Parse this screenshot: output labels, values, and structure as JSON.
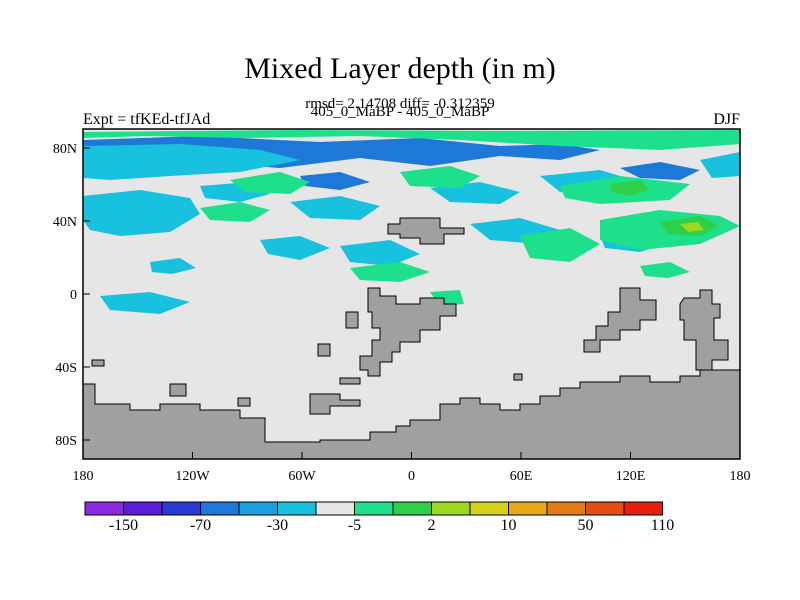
{
  "figure": {
    "title": "Mixed Layer depth (in m)",
    "stats_line": "rmsd= 2.14708 diff= -0.312359",
    "subtitle": "405_0_MaBP - 405_0_MaBP",
    "left_label": "Expt = tfKEd-tfJAd",
    "right_label": "DJF"
  },
  "axes": {
    "x_ticks": [
      "180",
      "120W",
      "60W",
      "0",
      "60E",
      "120E",
      "180"
    ],
    "y_ticks": [
      "80N",
      "40N",
      "0",
      "40S",
      "80S"
    ]
  },
  "colorbar": {
    "labels": [
      "-150",
      "-70",
      "-30",
      "-5",
      "2",
      "10",
      "50",
      "110"
    ],
    "colors": [
      "#8a2be2",
      "#5a1ed8",
      "#2a3ad2",
      "#1e78d8",
      "#1aa0e0",
      "#18c2de",
      "#e6e6e6",
      "#1ee08c",
      "#2ed04a",
      "#9ed81e",
      "#d6d21a",
      "#e6a814",
      "#e67a12",
      "#e64e10",
      "#e61e0e"
    ]
  },
  "legend_colors": {
    "land": "#a0a0a0",
    "near_zero": "#e6e6e6",
    "negative_shallow": "#18c2de",
    "negative_deep": "#1e78d8",
    "positive": "#1ee08c",
    "positive_strong": "#2ed04a",
    "positive_peak": "#9ed81e"
  }
}
